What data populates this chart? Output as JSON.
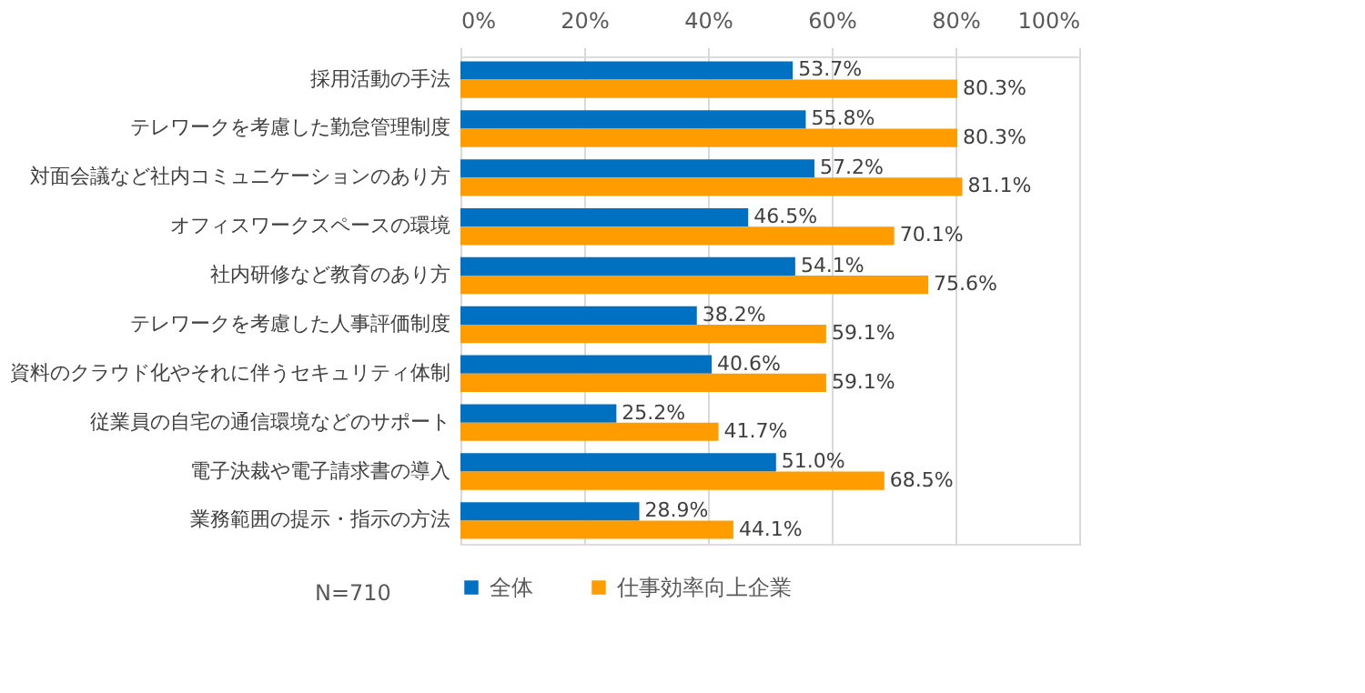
{
  "chart_data": {
    "type": "bar",
    "orientation": "horizontal",
    "categories": [
      "採用活動の手法",
      "テレワークを考慮した勤怠管理制度",
      "対面会議など社内コミュニケーションのあり方",
      "オフィスワークスペースの環境",
      "社内研修など教育のあり方",
      "テレワークを考慮した人事評価制度",
      "資料のクラウド化やそれに伴うセキュリティ体制",
      "従業員の自宅の通信環境などのサポート",
      "電子決裁や電子請求書の導入",
      "業務範囲の提示・指示の方法"
    ],
    "series": [
      {
        "name": "全体",
        "color": "#0070c0",
        "values": [
          53.7,
          55.8,
          57.2,
          46.5,
          54.1,
          38.2,
          40.6,
          25.2,
          51.0,
          28.9
        ],
        "value_labels": [
          "53.7%",
          "55.8%",
          "57.2%",
          "46.5%",
          "54.1%",
          "38.2%",
          "40.6%",
          "25.2%",
          "51.0%",
          "28.9%"
        ]
      },
      {
        "name": "仕事効率向上企業",
        "color": "#ff9c00",
        "values": [
          80.3,
          80.3,
          81.1,
          70.1,
          75.6,
          59.1,
          59.1,
          41.7,
          68.5,
          44.1
        ],
        "value_labels": [
          "80.3%",
          "80.3%",
          "81.1%",
          "70.1%",
          "75.6%",
          "59.1%",
          "59.1%",
          "41.7%",
          "68.5%",
          "44.1%"
        ]
      }
    ],
    "xlim": [
      0,
      100
    ],
    "xticks": [
      {
        "value": 0,
        "label": "0%"
      },
      {
        "value": 20,
        "label": "20%"
      },
      {
        "value": 40,
        "label": "40%"
      },
      {
        "value": 60,
        "label": "60%"
      },
      {
        "value": 80,
        "label": "80%"
      },
      {
        "value": 100,
        "label": "100%"
      }
    ],
    "grid": "x",
    "legend": "bottom",
    "annotations": [
      "N=710"
    ]
  }
}
